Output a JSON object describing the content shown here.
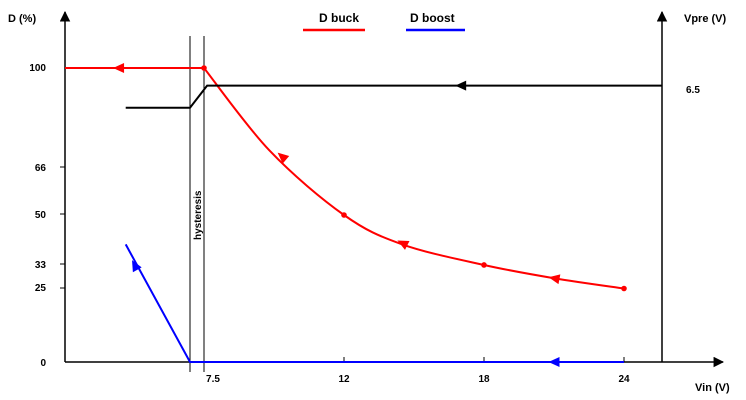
{
  "chart_data": {
    "type": "line",
    "x_label": "Vin (V)",
    "y_label": "D (%)",
    "y2_label": "Vpre (V)",
    "x_ticks": [
      "7.5",
      "12",
      "18",
      "24"
    ],
    "y_ticks": [
      "0",
      "25",
      "33",
      "50",
      "66",
      "100"
    ],
    "y2_ticks": [
      "6.5"
    ],
    "annotation": "hysteresis",
    "series": [
      {
        "name": "D buck",
        "color": "#ff0000",
        "axis": "left",
        "points": [
          [
            0,
            100
          ],
          [
            7.5,
            100
          ],
          [
            9.6,
            72
          ],
          [
            12,
            50
          ],
          [
            14.5,
            40
          ],
          [
            18,
            33
          ],
          [
            21,
            28.5
          ],
          [
            24,
            25
          ]
        ],
        "arrows_at": [
          [
            3,
            100
          ],
          [
            10,
            70
          ],
          [
            14.5,
            40.5
          ],
          [
            21,
            28.5
          ]
        ]
      },
      {
        "name": "D boost",
        "color": "#0000ff",
        "axis": "left",
        "points": [
          [
            3.4,
            40
          ],
          [
            7,
            0
          ],
          [
            24,
            0
          ]
        ],
        "arrows_at": [
          [
            3.9,
            33
          ],
          [
            21,
            0
          ]
        ]
      },
      {
        "name": "Vpre",
        "color": "#000000",
        "axis": "right",
        "points": [
          [
            3.4,
            86.5
          ],
          [
            7,
            86.5
          ],
          [
            7.6,
            94
          ],
          [
            25.5,
            94
          ]
        ],
        "arrows_at": [
          [
            17,
            94
          ]
        ]
      }
    ],
    "hysteresis_band": [
      7,
      7.5
    ]
  }
}
